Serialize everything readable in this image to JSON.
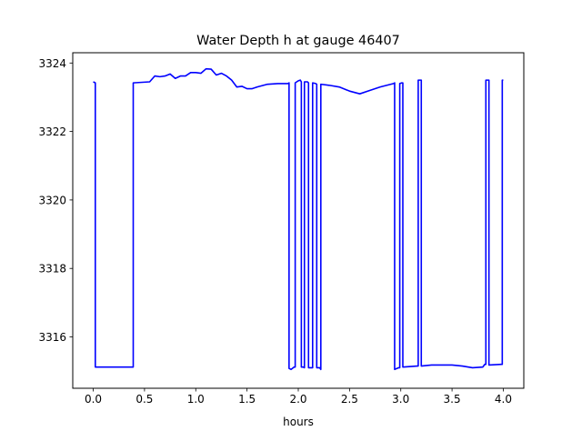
{
  "chart_data": {
    "type": "line",
    "title": "Water Depth h at gauge 46407",
    "xlabel": "hours",
    "ylabel": "",
    "xlim": [
      -0.2,
      4.2
    ],
    "ylim": [
      3314.5,
      3324.3
    ],
    "grid": false,
    "x_ticks": [
      0.0,
      0.5,
      1.0,
      1.5,
      2.0,
      2.5,
      3.0,
      3.5,
      4.0
    ],
    "x_tick_labels": [
      "0.0",
      "0.5",
      "1.0",
      "1.5",
      "2.0",
      "2.5",
      "3.0",
      "3.5",
      "4.0"
    ],
    "y_ticks": [
      3316,
      3318,
      3320,
      3322,
      3324
    ],
    "y_tick_labels": [
      "3316",
      "3318",
      "3320",
      "3322",
      "3324"
    ],
    "series": [
      {
        "color": "#0000ff",
        "x": [
          0.0,
          0.02,
          0.02,
          0.39,
          0.39,
          0.55,
          0.6,
          0.65,
          0.7,
          0.75,
          0.8,
          0.85,
          0.9,
          0.95,
          1.0,
          1.05,
          1.1,
          1.15,
          1.2,
          1.25,
          1.3,
          1.35,
          1.4,
          1.45,
          1.5,
          1.55,
          1.6,
          1.7,
          1.8,
          1.9,
          1.91,
          1.91,
          1.93,
          1.96,
          1.97,
          1.97,
          2.0,
          2.02,
          2.03,
          2.03,
          2.05,
          2.06,
          2.06,
          2.09,
          2.1,
          2.1,
          2.13,
          2.14,
          2.14,
          2.17,
          2.18,
          2.18,
          2.21,
          2.22,
          2.22,
          2.3,
          2.4,
          2.5,
          2.6,
          2.7,
          2.8,
          2.93,
          2.94,
          2.94,
          2.98,
          2.99,
          2.99,
          3.01,
          3.02,
          3.02,
          3.16,
          3.17,
          3.17,
          3.19,
          3.2,
          3.2,
          3.3,
          3.4,
          3.5,
          3.6,
          3.7,
          3.8,
          3.82,
          3.83,
          3.83,
          3.85,
          3.86,
          3.86,
          3.98,
          3.99,
          3.99,
          4.0
        ],
        "y": [
          3323.45,
          3323.42,
          3315.12,
          3315.12,
          3323.42,
          3323.45,
          3323.62,
          3323.6,
          3323.62,
          3323.68,
          3323.55,
          3323.62,
          3323.62,
          3323.72,
          3323.72,
          3323.7,
          3323.83,
          3323.82,
          3323.65,
          3323.7,
          3323.62,
          3323.5,
          3323.3,
          3323.32,
          3323.25,
          3323.25,
          3323.3,
          3323.38,
          3323.4,
          3323.4,
          3323.42,
          3315.08,
          3315.05,
          3315.12,
          3315.12,
          3323.42,
          3323.48,
          3323.5,
          3323.45,
          3315.12,
          3315.12,
          3315.1,
          3323.45,
          3323.45,
          3323.42,
          3315.1,
          3315.1,
          3315.1,
          3323.42,
          3323.4,
          3323.38,
          3315.1,
          3315.1,
          3315.05,
          3323.38,
          3323.35,
          3323.3,
          3323.18,
          3323.1,
          3323.2,
          3323.3,
          3323.4,
          3323.42,
          3315.05,
          3315.1,
          3315.1,
          3323.4,
          3323.42,
          3323.42,
          3315.12,
          3315.15,
          3315.15,
          3323.5,
          3323.5,
          3323.5,
          3315.15,
          3315.18,
          3315.18,
          3315.18,
          3315.15,
          3315.1,
          3315.12,
          3315.2,
          3315.2,
          3323.5,
          3323.5,
          3323.5,
          3315.18,
          3315.2,
          3315.2,
          3323.5,
          3323.5
        ]
      }
    ]
  }
}
